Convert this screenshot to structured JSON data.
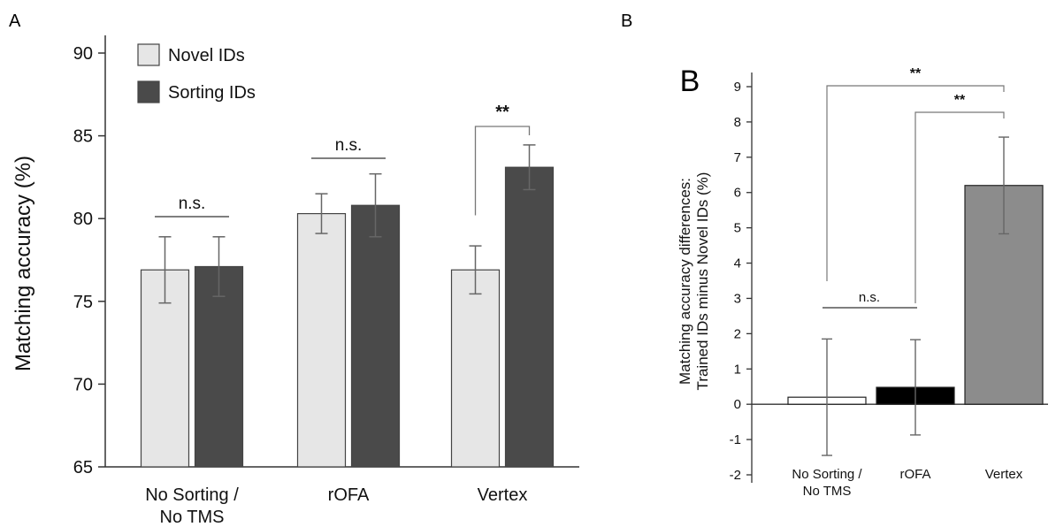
{
  "figure": {
    "label_a": "A",
    "label_b_small": "B",
    "label_b_big": "B"
  },
  "chart_data": [
    {
      "type": "bar",
      "ylabel": "Matching accuracy (%)",
      "ylim": [
        65,
        90
      ],
      "yticks": [
        65,
        70,
        75,
        80,
        85,
        90
      ],
      "categories": [
        [
          "No Sorting /",
          "No TMS"
        ],
        [
          "rOFA"
        ],
        [
          "Vertex"
        ]
      ],
      "series": [
        {
          "name": "Novel IDs",
          "color": "#e6e6e6",
          "values": [
            76.9,
            80.3,
            76.9
          ],
          "errors": [
            2.0,
            1.2,
            1.45
          ]
        },
        {
          "name": "Sorting IDs",
          "color": "#4a4a4a",
          "values": [
            77.1,
            80.8,
            83.1
          ],
          "errors": [
            1.8,
            1.9,
            1.35
          ]
        }
      ],
      "legend_position": "top-left",
      "annotations": [
        {
          "group": 0,
          "text": "n.s."
        },
        {
          "group": 1,
          "text": "n.s."
        },
        {
          "group": 2,
          "text": "**"
        }
      ]
    },
    {
      "type": "bar",
      "ylabel": [
        "Matching accuracy differences:",
        "Trained IDs minus Novel IDs (%)"
      ],
      "ylim": [
        -2,
        9
      ],
      "yticks": [
        -2,
        -1,
        0,
        1,
        2,
        3,
        4,
        5,
        6,
        7,
        8,
        9
      ],
      "categories": [
        [
          "No Sorting /",
          "No TMS"
        ],
        [
          "rOFA"
        ],
        [
          "Vertex"
        ]
      ],
      "values": [
        0.2,
        0.48,
        6.2
      ],
      "errors": [
        1.65,
        1.35,
        1.37
      ],
      "colors": [
        "#ffffff",
        "#000000",
        "#8c8c8c"
      ],
      "annotations": [
        {
          "from": 0,
          "to": 1,
          "text": "n.s."
        },
        {
          "from": 0,
          "to": 2,
          "text": "**"
        },
        {
          "from": 1,
          "to": 2,
          "text": "**"
        }
      ]
    }
  ]
}
